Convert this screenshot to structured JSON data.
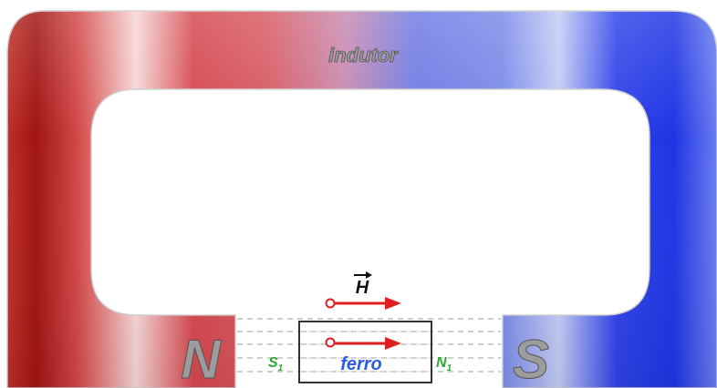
{
  "magnet": {
    "title": "indutor",
    "north_label": "N",
    "south_label": "S",
    "north_color": "#c8252c",
    "south_color": "#2a3fe6"
  },
  "field": {
    "vector_label": "H",
    "arrow_color": "#e02020",
    "field_line_color": "#bdbdbd"
  },
  "specimen": {
    "label": "ferro",
    "label_color": "#2a5be6",
    "left_pole_letter": "S",
    "left_pole_subscript": "1",
    "right_pole_letter": "N",
    "right_pole_subscript": "1",
    "pole_label_color": "#2eaa2e"
  }
}
